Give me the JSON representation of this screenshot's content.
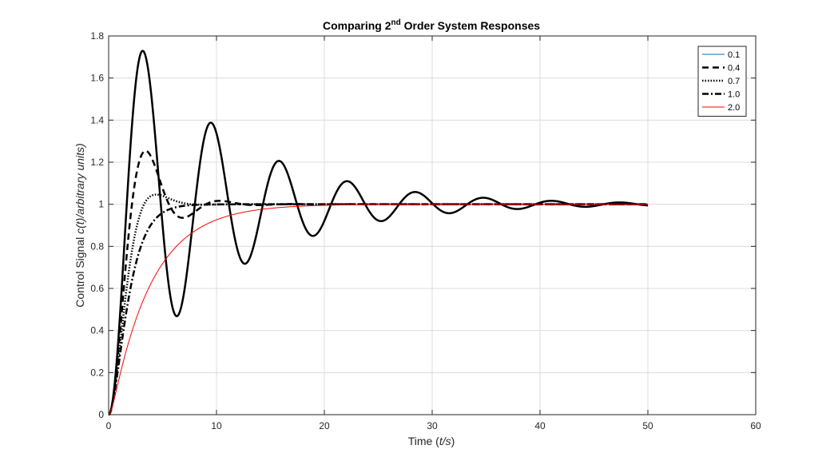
{
  "chart_data": {
    "type": "line",
    "title_prefix": "Comparing 2",
    "title_sup": "nd",
    "title_suffix": " Order System Responses",
    "xlabel_prefix": "Time (",
    "xlabel_italic": "t/s",
    "xlabel_suffix": ")",
    "ylabel_prefix": "Control Signal ",
    "ylabel_italic": "c(t)/arbitrary units)",
    "xlim": [
      0,
      60
    ],
    "ylim": [
      0,
      1.8
    ],
    "xticks": [
      "0",
      "10",
      "20",
      "30",
      "40",
      "50",
      "60"
    ],
    "yticks": [
      "0",
      "0.2",
      "0.4",
      "0.6",
      "0.8",
      "1",
      "1.2",
      "1.4",
      "1.6",
      "1.8"
    ],
    "grid": true,
    "legend_position": "top-right",
    "x_range": [
      0,
      50
    ],
    "natural_frequency": 1,
    "series": [
      {
        "name": "0.1",
        "zeta": 0.1,
        "color": "#000000",
        "dash": "",
        "width": 2.5
      },
      {
        "name": "0.4",
        "zeta": 0.4,
        "color": "#000000",
        "dash": "8,5",
        "width": 2.5
      },
      {
        "name": "0.7",
        "zeta": 0.7,
        "color": "#000000",
        "dash": "1.5,2",
        "width": 2.5
      },
      {
        "name": "1.0",
        "zeta": 1.0,
        "color": "#000000",
        "dash": "8,3,2,3",
        "width": 2.5
      },
      {
        "name": "2.0",
        "zeta": 2.0,
        "color": "#ff0000",
        "dash": "",
        "width": 1
      }
    ],
    "legend_colors": [
      "#0072bd",
      "#000000",
      "#000000",
      "#000000",
      "#ff0000"
    ]
  }
}
